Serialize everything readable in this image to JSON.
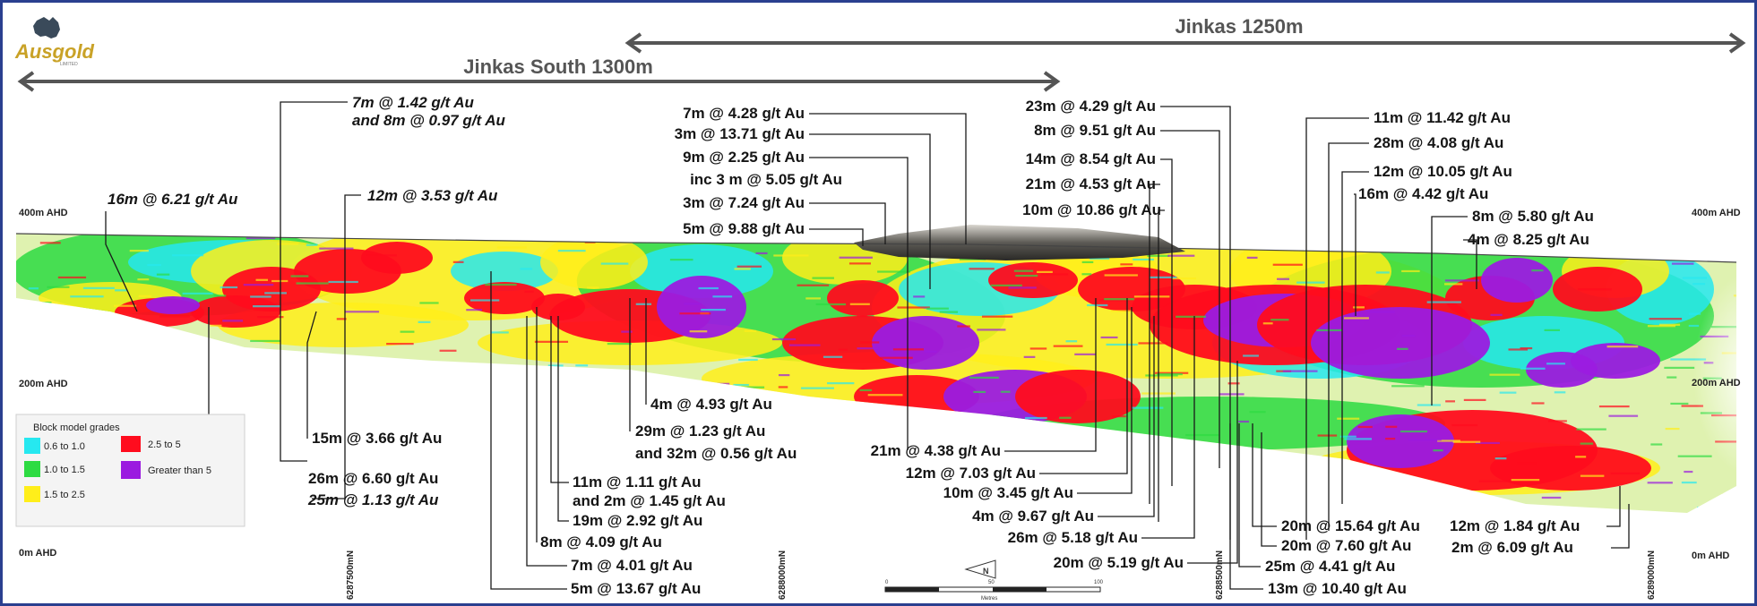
{
  "logo": {
    "name": "Ausgold",
    "sub": "LIMITED"
  },
  "sections": [
    {
      "label": "Jinkas South 1300m"
    },
    {
      "label": "Jinkas 1250m"
    }
  ],
  "elevation_labels": {
    "left": [
      "400m AHD",
      "200m AHD",
      "0m AHD"
    ],
    "right": [
      "400m AHD",
      "200m AHD",
      "0m AHD"
    ]
  },
  "northings": [
    "6287500mN",
    "6288000mN",
    "6288500mN",
    "6289000mN"
  ],
  "legend": {
    "title": "Block model grades",
    "items": [
      {
        "label": "0.6 to 1.0",
        "color": "#26e8f0"
      },
      {
        "label": "1.0 to 1.5",
        "color": "#2ddb42"
      },
      {
        "label": "1.5 to 2.5",
        "color": "#ffee1a"
      },
      {
        "label": "2.5 to 5",
        "color": "#ff0c1e"
      },
      {
        "label": "Greater than 5",
        "color": "#9b1be0"
      }
    ]
  },
  "intercepts": [
    {
      "text": "7m @ 1.42 g/t Au"
    },
    {
      "text": "and 8m @ 0.97 g/t Au"
    },
    {
      "text": "16m @ 6.21 g/t Au"
    },
    {
      "text": "12m @ 3.53 g/t Au"
    },
    {
      "text": "15m @ 3.66 g/t Au"
    },
    {
      "text": "26m @ 6.60 g/t Au"
    },
    {
      "text": "25m @ 1.13 g/t Au"
    },
    {
      "text": "7m @ 4.28 g/t Au"
    },
    {
      "text": "3m @ 13.71 g/t Au"
    },
    {
      "text": "9m @ 2.25 g/t Au"
    },
    {
      "text": "inc 3 m @ 5.05 g/t Au"
    },
    {
      "text": "3m @ 7.24 g/t Au"
    },
    {
      "text": "5m @ 9.88 g/t Au"
    },
    {
      "text": "4m @ 4.93 g/t Au"
    },
    {
      "text": "29m @ 1.23 g/t Au"
    },
    {
      "text": "and 32m @ 0.56 g/t Au"
    },
    {
      "text": "11m @ 1.11 g/t Au"
    },
    {
      "text": "and 2m @ 1.45 g/t Au"
    },
    {
      "text": "19m @ 2.92 g/t Au"
    },
    {
      "text": "8m @ 4.09 g/t Au"
    },
    {
      "text": "7m @ 4.01 g/t Au"
    },
    {
      "text": "5m @ 13.67 g/t Au"
    },
    {
      "text": "23m @ 4.29 g/t Au"
    },
    {
      "text": "8m @ 9.51 g/t Au"
    },
    {
      "text": "14m @ 8.54 g/t Au"
    },
    {
      "text": "21m @ 4.53 g/t Au"
    },
    {
      "text": "10m @ 10.86 g/t Au"
    },
    {
      "text": "21m @ 4.38 g/t Au"
    },
    {
      "text": "12m @ 7.03 g/t Au"
    },
    {
      "text": "10m @ 3.45 g/t Au"
    },
    {
      "text": "4m @ 9.67 g/t Au"
    },
    {
      "text": "26m @ 5.18 g/t Au"
    },
    {
      "text": "20m @ 5.19 g/t Au"
    },
    {
      "text": "11m @ 11.42 g/t Au"
    },
    {
      "text": "28m @ 4.08 g/t Au"
    },
    {
      "text": "12m @ 10.05 g/t Au"
    },
    {
      "text": "16m @ 4.42 g/t Au"
    },
    {
      "text": "8m @ 5.80 g/t Au"
    },
    {
      "text": "4m @ 8.25 g/t Au"
    },
    {
      "text": "20m @ 15.64 g/t Au"
    },
    {
      "text": "20m @ 7.60 g/t Au"
    },
    {
      "text": "25m @ 4.41 g/t Au"
    },
    {
      "text": "13m @ 10.40 g/t Au"
    },
    {
      "text": "12m @ 1.84 g/t Au"
    },
    {
      "text": "2m @ 6.09 g/t Au"
    }
  ],
  "scale_bar": {
    "ticks": [
      "0",
      "50",
      "100"
    ],
    "unit": "Metres"
  },
  "north_arrow": {
    "label": "N"
  }
}
